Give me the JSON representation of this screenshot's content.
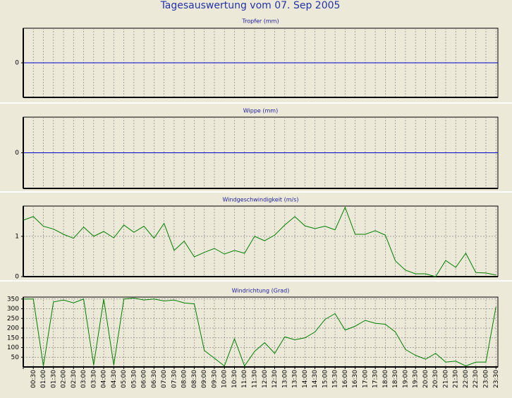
{
  "title": "Tagesauswertung vom 07. Sep 2005",
  "chart_data": [
    {
      "type": "line",
      "title": "Tropfer (mm)",
      "ylim": [
        -1,
        1
      ],
      "yticks": [
        0
      ],
      "tick_line_color": "#0000cc",
      "grid": true
    },
    {
      "type": "line",
      "title": "Wippe (mm)",
      "ylim": [
        -1,
        1
      ],
      "yticks": [
        0
      ],
      "tick_line_color": "#0000cc",
      "grid": true
    },
    {
      "type": "line",
      "title": "Windgeschwindigkeit (m/s)",
      "ylim": [
        0,
        1.75
      ],
      "yticks": [
        0,
        1
      ],
      "grid": true,
      "series": [
        {
          "name": "Windgeschwindigkeit",
          "color": "#008000",
          "values": [
            1.4,
            1.49,
            1.25,
            1.18,
            1.05,
            0.95,
            1.23,
            1.0,
            1.12,
            0.96,
            1.28,
            1.1,
            1.25,
            0.95,
            1.32,
            0.65,
            0.88,
            0.49,
            0.6,
            0.7,
            0.56,
            0.65,
            0.58,
            1.0,
            0.89,
            1.03,
            1.28,
            1.49,
            1.26,
            1.19,
            1.25,
            1.16,
            1.72,
            1.05,
            1.05,
            1.14,
            1.03,
            0.39,
            0.16,
            0.07,
            0.07,
            0.0,
            0.4,
            0.23,
            0.58,
            0.1,
            0.09,
            0.04
          ]
        }
      ]
    },
    {
      "type": "line",
      "title": "Windrichtung (Grad)",
      "ylim": [
        0,
        360
      ],
      "yticks": [
        50,
        100,
        150,
        200,
        250,
        300,
        350
      ],
      "grid": true,
      "categories": [
        null,
        "00:30",
        "01:00",
        "01:30",
        "02:00",
        "02:30",
        "03:00",
        "03:30",
        "04:00",
        "04:30",
        "05:00",
        "05:30",
        "06:00",
        "06:30",
        "07:00",
        "07:30",
        "08:00",
        "08:30",
        "09:00",
        "09:30",
        "10:00",
        "10:30",
        "11:00",
        "11:30",
        "12:00",
        "12:30",
        "13:00",
        "13:30",
        "14:00",
        "14:30",
        "15:00",
        "15:30",
        "16:00",
        "16:30",
        "17:00",
        "17:30",
        "18:00",
        "18:30",
        "19:00",
        "19:30",
        "20:00",
        "20:30",
        "21:00",
        "21:30",
        "22:00",
        "22:30",
        "23:00",
        "23:30"
      ],
      "series": [
        {
          "name": "Windrichtung",
          "color": "#008000",
          "values": [
            350,
            350,
            5,
            335,
            345,
            330,
            350,
            10,
            350,
            10,
            350,
            355,
            345,
            350,
            340,
            345,
            330,
            325,
            85,
            45,
            5,
            145,
            5,
            80,
            125,
            70,
            155,
            140,
            150,
            180,
            245,
            275,
            190,
            210,
            240,
            225,
            220,
            180,
            90,
            60,
            40,
            70,
            25,
            30,
            5,
            25,
            25,
            310
          ]
        }
      ]
    }
  ]
}
